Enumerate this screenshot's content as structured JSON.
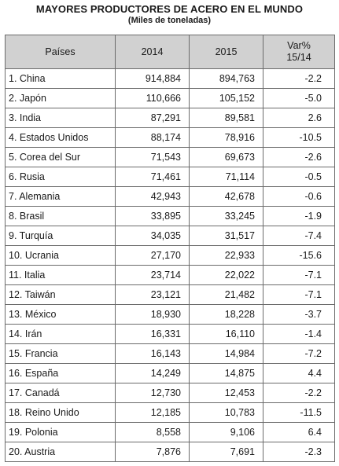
{
  "title": "MAYORES PRODUCTORES DE ACERO EN EL MUNDO",
  "subtitle": "(Miles de toneladas)",
  "chart_data": {
    "type": "table",
    "title": "MAYORES PRODUCTORES DE ACERO EN EL MUNDO",
    "subtitle": "(Miles de toneladas)",
    "columns": [
      "Países",
      "2014",
      "2015",
      "Var%\n15/14"
    ],
    "rows": [
      [
        "1. China",
        "914,884",
        "894,763",
        "-2.2"
      ],
      [
        "2. Japón",
        "110,666",
        "105,152",
        "-5.0"
      ],
      [
        "3. India",
        "87,291",
        "89,581",
        "2.6"
      ],
      [
        "4. Estados Unidos",
        "88,174",
        "78,916",
        "-10.5"
      ],
      [
        "5. Corea del Sur",
        "71,543",
        "69,673",
        "-2.6"
      ],
      [
        "6. Rusia",
        "71,461",
        "71,114",
        "-0.5"
      ],
      [
        "7. Alemania",
        "42,943",
        "42,678",
        "-0.6"
      ],
      [
        "8. Brasil",
        "33,895",
        "33,245",
        "-1.9"
      ],
      [
        "9. Turquía",
        "34,035",
        "31,517",
        "-7.4"
      ],
      [
        "10. Ucrania",
        "27,170",
        "22,933",
        "-15.6"
      ],
      [
        "11. Italia",
        "23,714",
        "22,022",
        "-7.1"
      ],
      [
        "12. Taiwán",
        "23,121",
        "21,482",
        "-7.1"
      ],
      [
        "13. México",
        "18,930",
        "18,228",
        "-3.7"
      ],
      [
        "14. Irán",
        "16,331",
        "16,110",
        "-1.4"
      ],
      [
        "15. Francia",
        "16,143",
        "14,984",
        "-7.2"
      ],
      [
        "16. España",
        "14,249",
        "14,875",
        "4.4"
      ],
      [
        "17. Canadá",
        "12,730",
        "12,453",
        "-2.2"
      ],
      [
        "18. Reino Unido",
        "12,185",
        "10,783",
        "-11.5"
      ],
      [
        "19. Polonia",
        "8,558",
        "9,106",
        "6.4"
      ],
      [
        "20. Austria",
        "7,876",
        "7,691",
        "-2.3"
      ]
    ]
  },
  "colors": {
    "header_background": "#d1d1d1",
    "border": "#6b6b6b",
    "text": "#1a1a1a"
  }
}
